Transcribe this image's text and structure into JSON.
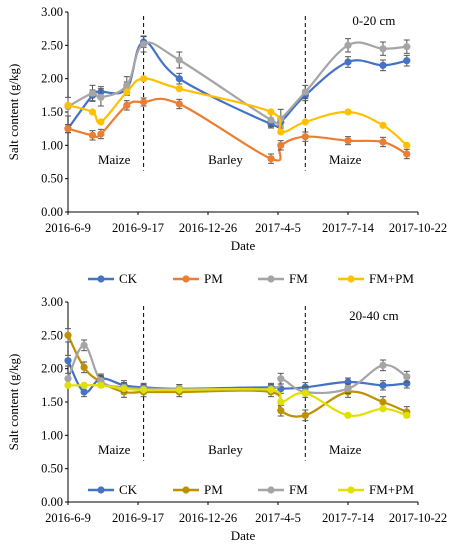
{
  "chart_data": [
    {
      "type": "line",
      "ylabel": "Salt content (g/kg)",
      "xlabel": "Date",
      "depth_label": "0-20 cm",
      "ylim": [
        0,
        3
      ],
      "yticks": [
        "0.00",
        "0.50",
        "1.00",
        "1.50",
        "2.00",
        "2.50",
        "3.00"
      ],
      "xticks": [
        "2016-6-9",
        "2016-9-17",
        "2016-12-26",
        "2017-4-5",
        "2017-7-14",
        "2017-10-22"
      ],
      "season_labels": [
        "Maize",
        "Barley",
        "Maize"
      ],
      "legend": [
        "CK",
        "PM",
        "FM",
        "FM+PM"
      ],
      "legend_placement": "bottom",
      "grid": false,
      "series": [
        {
          "name": "CK",
          "color": "#4472C4",
          "x": [
            "2016-6-9",
            "2016-7-14",
            "2016-7-26",
            "2016-9-1",
            "2016-9-25",
            "2016-11-15",
            "2017-3-26",
            "2017-4-9",
            "2017-5-14",
            "2017-7-14",
            "2017-9-2",
            "2017-10-6"
          ],
          "y": [
            1.25,
            1.75,
            1.8,
            1.85,
            2.55,
            2.0,
            1.32,
            1.35,
            1.75,
            2.25,
            2.2,
            2.27
          ],
          "err": [
            0.06,
            0.08,
            0.08,
            0.1,
            0.08,
            0.08,
            0.06,
            0.06,
            0.08,
            0.08,
            0.08,
            0.08
          ]
        },
        {
          "name": "PM",
          "color": "#ED7D31",
          "x": [
            "2016-6-9",
            "2016-7-14",
            "2016-7-26",
            "2016-9-1",
            "2016-9-25",
            "2016-11-15",
            "2017-3-26",
            "2017-4-9",
            "2017-5-14",
            "2017-7-14",
            "2017-9-2",
            "2017-10-6"
          ],
          "y": [
            1.25,
            1.15,
            1.17,
            1.6,
            1.65,
            1.62,
            0.8,
            1.0,
            1.13,
            1.07,
            1.05,
            0.87
          ],
          "err": [
            0.06,
            0.07,
            0.07,
            0.07,
            0.06,
            0.07,
            0.07,
            0.07,
            0.07,
            0.06,
            0.07,
            0.07
          ]
        },
        {
          "name": "FM",
          "color": "#A5A5A5",
          "x": [
            "2016-6-9",
            "2016-7-14",
            "2016-7-26",
            "2016-9-1",
            "2016-9-25",
            "2016-11-15",
            "2017-3-26",
            "2017-4-9",
            "2017-5-14",
            "2017-7-14",
            "2017-9-2",
            "2017-10-6"
          ],
          "y": [
            1.58,
            1.78,
            1.72,
            1.9,
            2.52,
            2.28,
            1.38,
            1.4,
            1.8,
            2.5,
            2.45,
            2.48
          ],
          "err": [
            0.14,
            0.12,
            0.13,
            0.13,
            0.12,
            0.12,
            0.1,
            0.14,
            0.1,
            0.1,
            0.1,
            0.1
          ]
        },
        {
          "name": "FM+PM",
          "color": "#FFC000",
          "x": [
            "2016-6-9",
            "2016-7-14",
            "2016-7-26",
            "2016-9-1",
            "2016-9-25",
            "2016-11-15",
            "2017-3-26",
            "2017-4-9",
            "2017-5-14",
            "2017-7-14",
            "2017-9-2",
            "2017-10-6"
          ],
          "y": [
            1.6,
            1.5,
            1.35,
            1.8,
            2.0,
            1.85,
            1.5,
            1.2,
            1.35,
            1.5,
            1.3,
            1.0
          ],
          "err": [
            0,
            0,
            0,
            0,
            0,
            0,
            0,
            0,
            0,
            0,
            0,
            0
          ]
        }
      ]
    },
    {
      "type": "line",
      "ylabel": "Salt content (g/kg)",
      "xlabel": "Date",
      "depth_label": "20-40 cm",
      "ylim": [
        0,
        3
      ],
      "yticks": [
        "0.00",
        "0.50",
        "1.00",
        "1.50",
        "2.00",
        "2.50",
        "3.00"
      ],
      "xticks": [
        "2016-6-9",
        "2016-9-17",
        "2016-12-26",
        "2017-4-5",
        "2017-7-14",
        "2017-10-22"
      ],
      "season_labels": [
        "Maize",
        "Barley",
        "Maize"
      ],
      "legend": [
        "CK",
        "PM",
        "FM",
        "FM+PM"
      ],
      "legend_placement": "bottom",
      "grid": false,
      "series": [
        {
          "name": "CK",
          "color": "#4472C4",
          "x": [
            "2016-6-9",
            "2016-7-2",
            "2016-7-26",
            "2016-8-28",
            "2016-9-25",
            "2016-11-15",
            "2017-3-26",
            "2017-4-9",
            "2017-5-14",
            "2017-7-14",
            "2017-9-2",
            "2017-10-6"
          ],
          "y": [
            2.12,
            1.65,
            1.85,
            1.75,
            1.72,
            1.7,
            1.72,
            1.7,
            1.72,
            1.8,
            1.75,
            1.78
          ],
          "err": [
            0.08,
            0.07,
            0.07,
            0.07,
            0.06,
            0.06,
            0.06,
            0.07,
            0.07,
            0.06,
            0.07,
            0.07
          ]
        },
        {
          "name": "PM",
          "color": "#BF9000",
          "x": [
            "2016-6-9",
            "2016-7-2",
            "2016-7-26",
            "2016-8-28",
            "2016-9-25",
            "2016-11-15",
            "2017-3-26",
            "2017-4-9",
            "2017-5-14",
            "2017-7-14",
            "2017-9-2",
            "2017-10-6"
          ],
          "y": [
            2.5,
            2.02,
            1.8,
            1.65,
            1.65,
            1.65,
            1.65,
            1.37,
            1.3,
            1.65,
            1.5,
            1.35
          ],
          "err": [
            0.1,
            0.08,
            0.08,
            0.08,
            0.07,
            0.07,
            0.07,
            0.08,
            0.08,
            0.08,
            0.08,
            0.08
          ]
        },
        {
          "name": "FM",
          "color": "#A5A5A5",
          "x": [
            "2016-6-9",
            "2016-7-2",
            "2016-7-26",
            "2016-8-28",
            "2016-9-25",
            "2016-11-15",
            "2017-3-26",
            "2017-4-9",
            "2017-5-14",
            "2017-7-14",
            "2017-9-2",
            "2017-10-6"
          ],
          "y": [
            1.85,
            2.35,
            1.82,
            1.72,
            1.7,
            1.7,
            1.7,
            1.85,
            1.65,
            1.7,
            2.05,
            1.88
          ],
          "err": [
            0.08,
            0.08,
            0.08,
            0.07,
            0.06,
            0.06,
            0.06,
            0.08,
            0.08,
            0.07,
            0.08,
            0.08
          ]
        },
        {
          "name": "FM+PM",
          "color": "#E0E000",
          "x": [
            "2016-6-9",
            "2016-7-2",
            "2016-7-26",
            "2016-8-28",
            "2016-9-25",
            "2016-11-15",
            "2017-3-26",
            "2017-4-9",
            "2017-5-14",
            "2017-7-14",
            "2017-9-2",
            "2017-10-6"
          ],
          "y": [
            1.75,
            1.75,
            1.75,
            1.7,
            1.68,
            1.68,
            1.68,
            1.5,
            1.63,
            1.3,
            1.4,
            1.3
          ],
          "err": [
            0,
            0,
            0,
            0,
            0,
            0,
            0,
            0,
            0,
            0,
            0,
            0
          ]
        }
      ]
    }
  ]
}
